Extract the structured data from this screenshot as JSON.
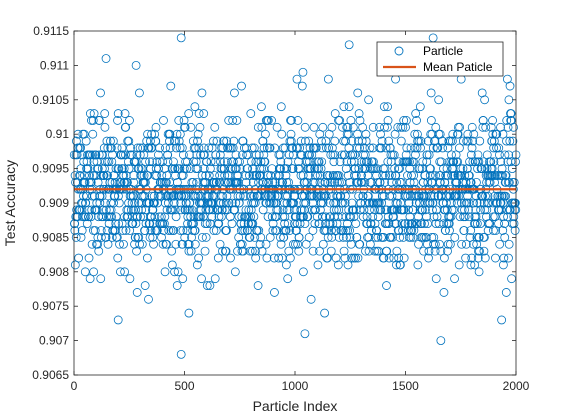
{
  "chart_data": {
    "type": "scatter",
    "xlabel": "Particle Index",
    "ylabel": "Test Accuracy",
    "xlim": [
      0,
      2000
    ],
    "ylim": [
      0.9065,
      0.9115
    ],
    "xticks": [
      0,
      500,
      1000,
      1500,
      2000
    ],
    "xtick_labels": [
      "0",
      "500",
      "1000",
      "1500",
      "2000"
    ],
    "yticks": [
      0.9065,
      0.907,
      0.9075,
      0.908,
      0.9085,
      0.909,
      0.9095,
      0.91,
      0.9105,
      0.911,
      0.9115
    ],
    "ytick_labels": [
      "0.9065",
      "0.907",
      "0.9075",
      "0.908",
      "0.9085",
      "0.909",
      "0.9095",
      "0.91",
      "0.9105",
      "0.911",
      "0.9115"
    ],
    "grid": false,
    "legend_position": "top-right",
    "series": [
      {
        "name": "Particle",
        "kind": "scatter",
        "marker": "open-circle",
        "color": "#0072BD",
        "n_points": 2000,
        "x_range": [
          1,
          2000
        ],
        "value_range": [
          0.9068,
          0.9114
        ],
        "mean": 0.9092,
        "notable_points": [
          {
            "x": 485,
            "y": 0.9114
          },
          {
            "x": 1245,
            "y": 0.9113
          },
          {
            "x": 1625,
            "y": 0.9114
          },
          {
            "x": 145,
            "y": 0.9111
          },
          {
            "x": 485,
            "y": 0.9068
          },
          {
            "x": 1045,
            "y": 0.9071
          },
          {
            "x": 1660,
            "y": 0.907
          },
          {
            "x": 1935,
            "y": 0.9073
          },
          {
            "x": 200,
            "y": 0.9073
          },
          {
            "x": 520,
            "y": 0.9074
          }
        ]
      },
      {
        "name": "Mean Paticle",
        "kind": "line",
        "color": "#D95319",
        "x": [
          0,
          2000
        ],
        "y": [
          0.9092,
          0.9092
        ]
      }
    ]
  }
}
